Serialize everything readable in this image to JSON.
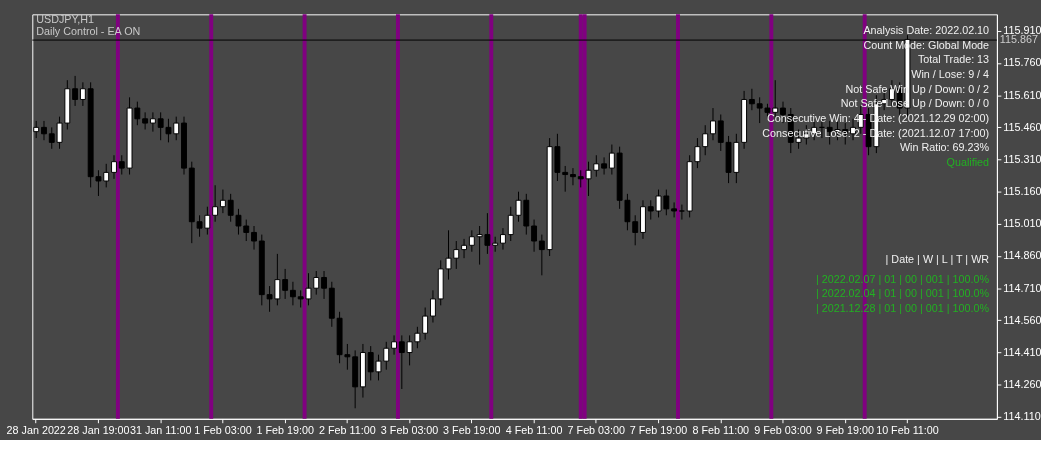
{
  "chart_data": {
    "type": "candlestick",
    "title": "USDJPY,H1",
    "subtitle": "Daily Control - EA ON",
    "categories": [
      "28 Jan 2022",
      null,
      null,
      null,
      null,
      null,
      null,
      null,
      "28 Jan 19:00",
      null,
      null,
      null,
      null,
      null,
      null,
      null,
      "31 Jan 11:00",
      null,
      null,
      null,
      null,
      null,
      null,
      null,
      "1 Feb 03:00",
      null,
      null,
      null,
      null,
      null,
      null,
      null,
      "1 Feb 19:00",
      null,
      null,
      null,
      null,
      null,
      null,
      null,
      "2 Feb 11:00",
      null,
      null,
      null,
      null,
      null,
      null,
      null,
      "3 Feb 03:00",
      null,
      null,
      null,
      null,
      null,
      null,
      null,
      "3 Feb 19:00",
      null,
      null,
      null,
      null,
      null,
      null,
      null,
      "4 Feb 11:00",
      null,
      null,
      null,
      null,
      null,
      null,
      null,
      "7 Feb 03:00",
      null,
      null,
      null,
      null,
      null,
      null,
      null,
      "7 Feb 19:00",
      null,
      null,
      null,
      null,
      null,
      null,
      null,
      "8 Feb 11:00",
      null,
      null,
      null,
      null,
      null,
      null,
      null,
      "9 Feb 03:00",
      null,
      null,
      null,
      null,
      null,
      null,
      null,
      "9 Feb 19:00",
      null,
      null,
      null,
      null,
      null,
      null,
      null,
      "10 Feb 11:00",
      null,
      null,
      null,
      null,
      null,
      null,
      null,
      null,
      null,
      null,
      null
    ],
    "ohlc": [
      [
        115.44,
        115.49,
        115.41,
        115.46
      ],
      [
        115.46,
        115.49,
        115.4,
        115.43
      ],
      [
        115.43,
        115.46,
        115.36,
        115.39
      ],
      [
        115.39,
        115.51,
        115.36,
        115.48
      ],
      [
        115.48,
        115.68,
        115.45,
        115.64
      ],
      [
        115.64,
        115.7,
        115.56,
        115.59
      ],
      [
        115.59,
        115.67,
        115.56,
        115.64
      ],
      [
        115.64,
        115.67,
        115.18,
        115.23
      ],
      [
        115.23,
        115.26,
        115.14,
        115.21
      ],
      [
        115.21,
        115.29,
        115.18,
        115.25
      ],
      [
        115.25,
        115.33,
        115.22,
        115.3
      ],
      [
        115.3,
        115.33,
        115.24,
        115.27
      ],
      [
        115.27,
        115.6,
        115.24,
        115.55
      ],
      [
        115.55,
        115.58,
        115.47,
        115.5
      ],
      [
        115.5,
        115.53,
        115.45,
        115.48
      ],
      [
        115.48,
        115.53,
        115.44,
        115.5
      ],
      [
        115.5,
        115.53,
        115.4,
        115.46
      ],
      [
        115.46,
        115.5,
        115.39,
        115.43
      ],
      [
        115.43,
        115.51,
        115.4,
        115.48
      ],
      [
        115.48,
        115.51,
        115.24,
        115.27
      ],
      [
        115.27,
        115.3,
        114.92,
        115.02
      ],
      [
        115.02,
        115.05,
        114.95,
        114.99
      ],
      [
        114.99,
        115.09,
        114.96,
        115.05
      ],
      [
        115.05,
        115.19,
        115.02,
        115.09
      ],
      [
        115.09,
        115.17,
        115.06,
        115.12
      ],
      [
        115.12,
        115.15,
        115.02,
        115.05
      ],
      [
        115.05,
        115.08,
        114.96,
        115.0
      ],
      [
        115.0,
        115.03,
        114.93,
        114.97
      ],
      [
        114.97,
        115.0,
        114.89,
        114.93
      ],
      [
        114.93,
        114.96,
        114.63,
        114.68
      ],
      [
        114.68,
        114.72,
        114.6,
        114.66
      ],
      [
        114.66,
        114.87,
        114.63,
        114.75
      ],
      [
        114.75,
        114.8,
        114.66,
        114.7
      ],
      [
        114.7,
        114.74,
        114.63,
        114.67
      ],
      [
        114.67,
        114.7,
        114.62,
        114.66
      ],
      [
        114.66,
        114.78,
        114.63,
        114.71
      ],
      [
        114.71,
        114.79,
        114.68,
        114.76
      ],
      [
        114.76,
        114.79,
        114.66,
        114.71
      ],
      [
        114.71,
        114.74,
        114.53,
        114.57
      ],
      [
        114.57,
        114.6,
        114.36,
        114.4
      ],
      [
        114.4,
        114.45,
        114.33,
        114.39
      ],
      [
        114.39,
        114.42,
        114.15,
        114.25
      ],
      [
        114.25,
        114.45,
        114.2,
        114.41
      ],
      [
        114.41,
        114.44,
        114.28,
        114.32
      ],
      [
        114.32,
        114.4,
        114.28,
        114.37
      ],
      [
        114.37,
        114.46,
        114.33,
        114.43
      ],
      [
        114.43,
        114.49,
        114.4,
        114.46
      ],
      [
        114.46,
        114.49,
        114.24,
        114.41
      ],
      [
        114.41,
        114.49,
        114.35,
        114.46
      ],
      [
        114.46,
        114.53,
        114.43,
        114.5
      ],
      [
        114.5,
        114.62,
        114.47,
        114.58
      ],
      [
        114.58,
        114.7,
        114.55,
        114.66
      ],
      [
        114.66,
        114.84,
        114.63,
        114.8
      ],
      [
        114.8,
        114.98,
        114.75,
        114.85
      ],
      [
        114.85,
        114.93,
        114.8,
        114.89
      ],
      [
        114.89,
        114.94,
        114.85,
        114.91
      ],
      [
        114.91,
        114.98,
        114.88,
        114.95
      ],
      [
        114.95,
        115.0,
        114.82,
        114.96
      ],
      [
        114.96,
        115.06,
        114.87,
        114.91
      ],
      [
        114.91,
        114.95,
        114.88,
        114.92
      ],
      [
        114.92,
        114.99,
        114.89,
        114.96
      ],
      [
        114.96,
        115.09,
        114.93,
        115.05
      ],
      [
        115.05,
        115.16,
        115.02,
        115.12
      ],
      [
        115.12,
        115.15,
        114.96,
        115.0
      ],
      [
        115.0,
        115.03,
        114.88,
        114.93
      ],
      [
        114.93,
        114.96,
        114.77,
        114.89
      ],
      [
        114.89,
        115.41,
        114.86,
        115.37
      ],
      [
        115.37,
        115.43,
        115.21,
        115.25
      ],
      [
        115.25,
        115.28,
        115.16,
        115.24
      ],
      [
        115.24,
        115.27,
        115.19,
        115.23
      ],
      [
        115.23,
        115.26,
        115.18,
        115.22
      ],
      [
        115.22,
        115.3,
        115.14,
        115.26
      ],
      [
        115.26,
        115.33,
        115.23,
        115.29
      ],
      [
        115.29,
        115.32,
        115.24,
        115.27
      ],
      [
        115.27,
        115.38,
        115.24,
        115.34
      ],
      [
        115.34,
        115.37,
        115.08,
        115.12
      ],
      [
        115.12,
        115.15,
        114.98,
        115.02
      ],
      [
        115.02,
        115.05,
        114.91,
        114.97
      ],
      [
        114.97,
        115.12,
        114.94,
        115.09
      ],
      [
        115.09,
        115.12,
        115.03,
        115.07
      ],
      [
        115.07,
        115.17,
        115.04,
        115.14
      ],
      [
        115.14,
        115.17,
        115.05,
        115.08
      ],
      [
        115.08,
        115.11,
        115.04,
        115.07
      ],
      [
        115.07,
        115.1,
        115.03,
        115.07
      ],
      [
        115.07,
        115.33,
        115.04,
        115.3
      ],
      [
        115.3,
        115.41,
        115.27,
        115.37
      ],
      [
        115.37,
        115.47,
        115.33,
        115.43
      ],
      [
        115.43,
        115.55,
        115.4,
        115.49
      ],
      [
        115.49,
        115.52,
        115.35,
        115.39
      ],
      [
        115.39,
        115.42,
        115.2,
        115.25
      ],
      [
        115.25,
        115.43,
        115.2,
        115.39
      ],
      [
        115.39,
        115.63,
        115.36,
        115.59
      ],
      [
        115.59,
        115.64,
        115.54,
        115.57
      ],
      [
        115.57,
        115.6,
        115.48,
        115.55
      ],
      [
        115.55,
        115.57,
        115.5,
        115.53
      ],
      [
        115.53,
        115.68,
        115.5,
        115.55
      ],
      [
        115.55,
        115.58,
        115.48,
        115.52
      ],
      [
        115.52,
        115.55,
        115.34,
        115.39
      ],
      [
        115.39,
        115.45,
        115.36,
        115.41
      ],
      [
        115.41,
        115.47,
        115.38,
        115.43
      ],
      [
        115.43,
        115.5,
        115.4,
        115.46
      ],
      [
        115.46,
        115.5,
        115.41,
        115.46
      ],
      [
        115.46,
        115.49,
        115.38,
        115.44
      ],
      [
        115.44,
        115.49,
        115.4,
        115.45
      ],
      [
        115.45,
        115.48,
        115.38,
        115.43
      ],
      [
        115.43,
        115.5,
        115.4,
        115.46
      ],
      [
        115.46,
        115.56,
        115.43,
        115.52
      ],
      [
        115.52,
        115.55,
        115.33,
        115.37
      ],
      [
        115.37,
        115.61,
        115.34,
        115.57
      ],
      [
        115.57,
        115.63,
        115.54,
        115.59
      ],
      [
        115.59,
        115.68,
        115.56,
        115.64
      ],
      [
        115.64,
        115.67,
        115.51,
        115.55
      ],
      [
        115.55,
        115.89,
        115.51,
        115.87
      ],
      null,
      null,
      null,
      null,
      null,
      null,
      null,
      null,
      null,
      null,
      null
    ],
    "ylim": [
      114.101,
      115.987
    ],
    "yticks": [
      {
        "value": 114.11,
        "label": "114.110"
      },
      {
        "value": 114.26,
        "label": "114.260"
      },
      {
        "value": 114.41,
        "label": "114.410"
      },
      {
        "value": 114.56,
        "label": "114.560"
      },
      {
        "value": 114.71,
        "label": "114.710"
      },
      {
        "value": 114.86,
        "label": "114.860"
      },
      {
        "value": 115.01,
        "label": "115.010"
      },
      {
        "value": 115.16,
        "label": "115.160"
      },
      {
        "value": 115.31,
        "label": "115.310"
      },
      {
        "value": 115.46,
        "label": "115.460"
      },
      {
        "value": 115.61,
        "label": "115.610"
      },
      {
        "value": 115.76,
        "label": "115.760"
      },
      {
        "value": 115.91,
        "label": "115.910"
      }
    ],
    "grid": false,
    "ref_lines": [
      {
        "axis": "y",
        "value": 115.867,
        "label": "115.867",
        "color": "#000000"
      }
    ],
    "annotations": [
      "Analysis Date: 2022.02.10",
      "Count Mode: Global Mode",
      "Total Trade: 13",
      "Win / Lose: 9 / 4",
      "Not Safe Win Up / Down: 0 / 2",
      "Not Safe Lose Up / Down: 0 / 0",
      "Consecutive Win: 4 - Date: (2021.12.29 02:00)",
      "Consecutive Lose: 2 - Date: (2021.12.07 17:00)",
      "Win Ratio: 69.23%",
      "Qualified",
      "|        Date        | W |  L |  T  |     WR",
      "| 2022.02.07 | 01 | 00 | 001 |  100.0%",
      "| 2022.02.04 | 01 | 00 | 001 |  100.0%",
      "| 2021.12.28 | 01 | 00 | 001 |  100.0%"
    ]
  }
}
